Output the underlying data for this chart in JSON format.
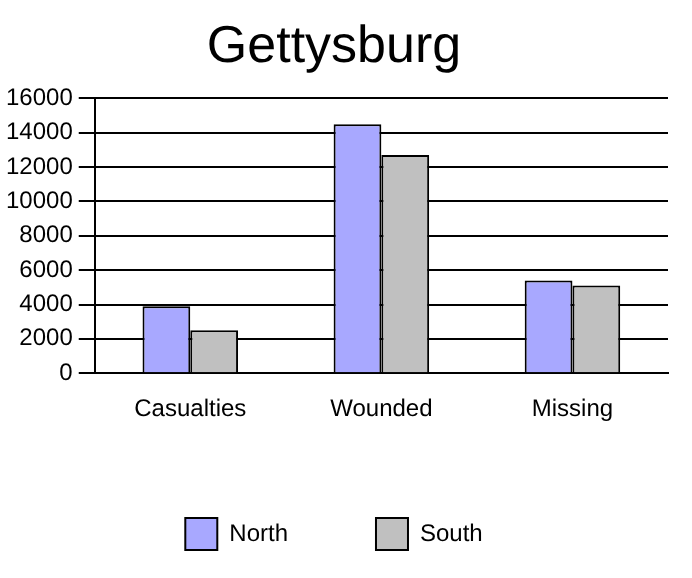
{
  "chart_data": {
    "type": "bar",
    "title": "Gettysburg",
    "categories": [
      "Casualties",
      "Wounded",
      "Missing"
    ],
    "series": [
      {
        "name": "North",
        "color": "#a8a8ff",
        "values": [
          3900,
          14500,
          5400
        ]
      },
      {
        "name": "South",
        "color": "#c0c0c0",
        "values": [
          2500,
          12700,
          5100
        ]
      }
    ],
    "ylim": [
      0,
      16000
    ],
    "yticks": [
      0,
      2000,
      4000,
      6000,
      8000,
      10000,
      12000,
      14000,
      16000
    ],
    "grid": "y",
    "legend": "bottom"
  }
}
